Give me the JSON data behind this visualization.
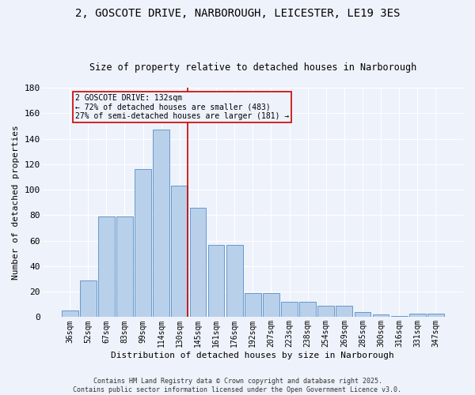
{
  "title_line1": "2, GOSCOTE DRIVE, NARBOROUGH, LEICESTER, LE19 3ES",
  "title_line2": "Size of property relative to detached houses in Narborough",
  "xlabel": "Distribution of detached houses by size in Narborough",
  "ylabel": "Number of detached properties",
  "categories": [
    "36sqm",
    "52sqm",
    "67sqm",
    "83sqm",
    "99sqm",
    "114sqm",
    "130sqm",
    "145sqm",
    "161sqm",
    "176sqm",
    "192sqm",
    "207sqm",
    "223sqm",
    "238sqm",
    "254sqm",
    "269sqm",
    "285sqm",
    "300sqm",
    "316sqm",
    "331sqm",
    "347sqm"
  ],
  "values": [
    5,
    29,
    79,
    79,
    116,
    147,
    103,
    86,
    57,
    57,
    19,
    19,
    12,
    12,
    9,
    9,
    4,
    2,
    1,
    3,
    3
  ],
  "bar_color": "#b8d0ea",
  "bar_edge_color": "#6699cc",
  "vline_x_index": 6,
  "vline_color": "#cc0000",
  "annotation_text": "2 GOSCOTE DRIVE: 132sqm\n← 72% of detached houses are smaller (483)\n27% of semi-detached houses are larger (181) →",
  "box_color": "#cc0000",
  "footer_line1": "Contains HM Land Registry data © Crown copyright and database right 2025.",
  "footer_line2": "Contains public sector information licensed under the Open Government Licence v3.0.",
  "background_color": "#eef2fb",
  "ylim": [
    0,
    180
  ],
  "yticks": [
    0,
    20,
    40,
    60,
    80,
    100,
    120,
    140,
    160,
    180
  ],
  "fig_width": 6.0,
  "fig_height": 5.0,
  "dpi": 100
}
